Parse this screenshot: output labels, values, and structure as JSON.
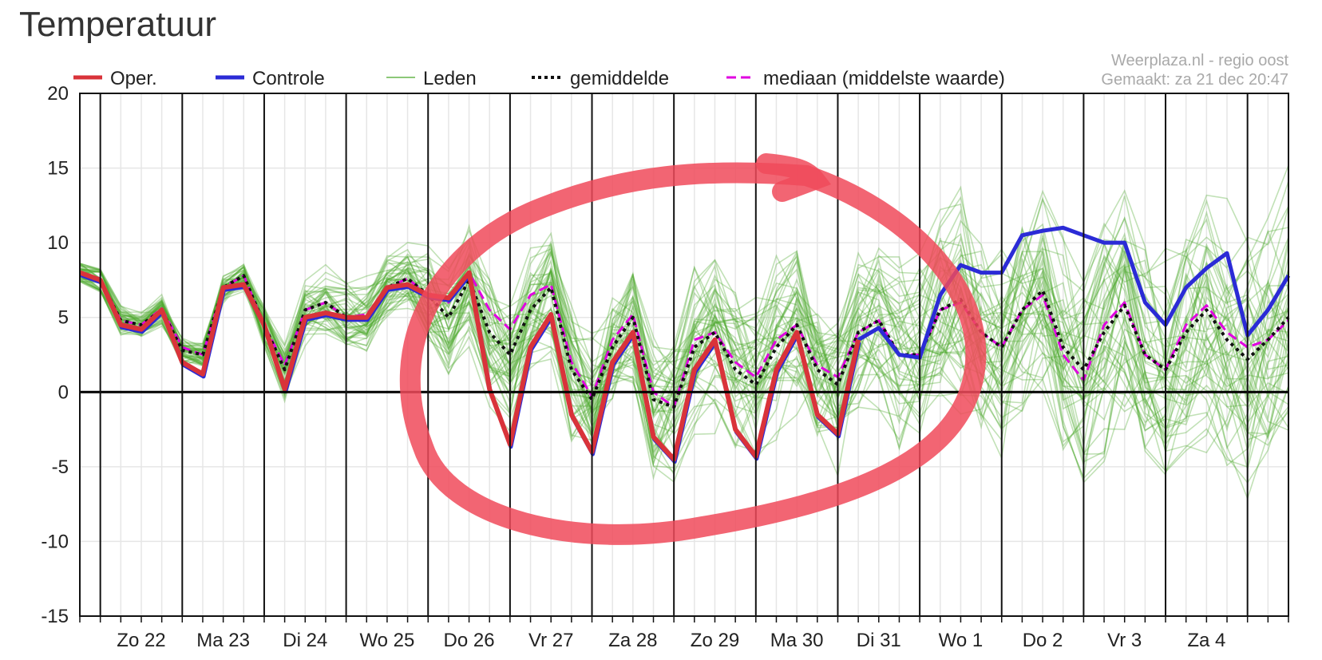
{
  "title": "Temperatuur",
  "source": {
    "line1": "Weerplaza.nl - regio oost",
    "line2": "Gemaakt: za 21 dec 20:47"
  },
  "colors": {
    "oper": "#d9333a",
    "controle": "#2b2bd6",
    "leden": "#4ea82e",
    "gemiddelde": "#111111",
    "mediaan": "#e000e0",
    "annotation": "#f04a5a"
  },
  "chart_data": {
    "type": "line",
    "title": "Temperatuur",
    "xlabel": "",
    "ylabel": "",
    "ylim": [
      -15,
      20
    ],
    "yticks": [
      -15,
      -10,
      -5,
      0,
      5,
      10,
      15,
      20
    ],
    "xlim": [
      21.75,
      36.5
    ],
    "grid": true,
    "legend_position": "top",
    "day_ticks": [
      {
        "label": "Zo 22",
        "x": 22.5
      },
      {
        "label": "Ma 23",
        "x": 23.5
      },
      {
        "label": "Di 24",
        "x": 24.5
      },
      {
        "label": "Wo 25",
        "x": 25.5
      },
      {
        "label": "Do 26",
        "x": 26.5
      },
      {
        "label": "Vr 27",
        "x": 27.5
      },
      {
        "label": "Za 28",
        "x": 28.5
      },
      {
        "label": "Zo 29",
        "x": 29.5
      },
      {
        "label": "Ma 30",
        "x": 30.5
      },
      {
        "label": "Di 31",
        "x": 31.5
      },
      {
        "label": "Wo 1",
        "x": 32.5
      },
      {
        "label": "Do 2",
        "x": 33.5
      },
      {
        "label": "Vr 3",
        "x": 34.5
      },
      {
        "label": "Za 4",
        "x": 35.5
      }
    ],
    "series": [
      {
        "name": "Oper.",
        "style": "oper",
        "x": [
          21.75,
          22.0,
          22.25,
          22.5,
          22.75,
          23.0,
          23.25,
          23.5,
          23.75,
          24.0,
          24.25,
          24.5,
          24.75,
          25.0,
          25.25,
          25.5,
          25.75,
          26.0,
          26.25,
          26.5,
          26.75,
          27.0,
          27.25,
          27.5,
          27.75,
          28.0,
          28.25,
          28.5,
          28.75,
          29.0,
          29.25,
          29.5,
          29.75,
          30.0,
          30.25,
          30.5,
          30.75,
          31.0,
          31.25
        ],
        "values": [
          8,
          7.5,
          4.5,
          4.2,
          5.5,
          2.0,
          1.2,
          7.0,
          7.2,
          4.5,
          0.2,
          5.0,
          5.3,
          5.0,
          5.0,
          7.0,
          7.2,
          6.5,
          6.3,
          8.0,
          0.2,
          -3.5,
          3.0,
          5.2,
          -1.5,
          -4.0,
          2.0,
          4.0,
          -3.0,
          -4.5,
          1.5,
          3.5,
          -2.5,
          -4.3,
          1.5,
          4.0,
          -1.5,
          -2.8,
          3.5
        ]
      },
      {
        "name": "Controle",
        "style": "controle",
        "x": [
          31.25,
          31.5,
          31.75,
          32.0,
          32.25,
          32.5,
          32.75,
          33.0,
          33.25,
          33.5,
          33.75,
          34.0,
          34.25,
          34.5,
          34.75,
          35.0,
          35.25,
          35.5,
          35.75,
          36.0,
          36.25,
          36.5
        ],
        "values": [
          3.5,
          4.3,
          2.5,
          2.3,
          6.5,
          8.5,
          8.0,
          8.0,
          10.5,
          10.8,
          11.0,
          10.5,
          10.0,
          10.0,
          6.0,
          4.5,
          7.0,
          8.3,
          9.3,
          3.8,
          5.5,
          7.8
        ]
      },
      {
        "name": "gemiddelde",
        "style": "gemiddelde",
        "x": [
          21.75,
          22.0,
          22.25,
          22.5,
          22.75,
          23.0,
          23.25,
          23.5,
          23.75,
          24.0,
          24.25,
          24.5,
          24.75,
          25.0,
          25.25,
          25.5,
          25.75,
          26.0,
          26.25,
          26.5,
          26.75,
          27.0,
          27.25,
          27.5,
          27.75,
          28.0,
          28.25,
          28.5,
          28.75,
          29.0,
          29.25,
          29.5,
          29.75,
          30.0,
          30.25,
          30.5,
          30.75,
          31.0,
          31.25,
          31.5,
          31.75,
          32.0,
          32.25,
          32.5,
          32.75,
          33.0,
          33.25,
          33.5,
          33.75,
          34.0,
          34.25,
          34.5,
          34.75,
          35.0,
          35.25,
          35.5,
          35.75,
          36.0,
          36.25,
          36.5
        ],
        "values": [
          8,
          7.5,
          4.8,
          4.5,
          5.5,
          2.8,
          2.5,
          7.0,
          7.8,
          4.5,
          1.5,
          5.5,
          6.0,
          5.0,
          5.0,
          7.0,
          7.6,
          6.5,
          5.0,
          7.5,
          4.0,
          2.5,
          5.5,
          7.0,
          1.5,
          -0.5,
          3.0,
          5.0,
          -0.5,
          -1.0,
          3.0,
          4.0,
          1.5,
          0.5,
          3.0,
          4.5,
          1.5,
          0.5,
          4.0,
          4.8,
          2.5,
          2.5,
          5.5,
          6.2,
          4.0,
          3.0,
          5.5,
          6.8,
          3.0,
          1.5,
          4.0,
          5.8,
          2.5,
          1.5,
          4.0,
          5.5,
          3.5,
          2.2,
          3.5,
          5.0
        ]
      },
      {
        "name": "mediaan (middelste waarde)",
        "style": "mediaan",
        "x": [
          21.75,
          22.0,
          22.25,
          22.5,
          22.75,
          23.0,
          23.25,
          23.5,
          23.75,
          24.0,
          24.25,
          24.5,
          24.75,
          25.0,
          25.25,
          25.5,
          25.75,
          26.0,
          26.25,
          26.5,
          26.75,
          27.0,
          27.25,
          27.5,
          27.75,
          28.0,
          28.25,
          28.5,
          28.75,
          29.0,
          29.25,
          29.5,
          29.75,
          30.0,
          30.25,
          30.5,
          30.75,
          31.0,
          31.25,
          31.5,
          31.75,
          32.0,
          32.25,
          32.5,
          32.75,
          33.0,
          33.25,
          33.5,
          33.75,
          34.0,
          34.25,
          34.5,
          34.75,
          35.0,
          35.25,
          35.5,
          35.75,
          36.0,
          36.25,
          36.5
        ],
        "values": [
          8,
          7.6,
          4.8,
          4.5,
          5.6,
          3.0,
          2.5,
          7.0,
          7.8,
          4.5,
          1.8,
          5.5,
          6.0,
          5.0,
          5.2,
          7.0,
          7.6,
          6.5,
          6.0,
          8.0,
          5.5,
          4.2,
          6.5,
          7.2,
          2.0,
          -0.3,
          3.5,
          5.2,
          0.0,
          -1.0,
          3.5,
          4.0,
          2.0,
          1.0,
          3.5,
          4.5,
          1.8,
          1.0,
          4.0,
          4.8,
          2.5,
          2.5,
          5.5,
          6.0,
          4.0,
          3.0,
          5.5,
          6.5,
          2.5,
          0.8,
          4.5,
          6.0,
          2.5,
          1.5,
          4.5,
          5.8,
          4.0,
          3.0,
          3.5,
          4.8
        ]
      }
    ],
    "leden": {
      "name": "Leden",
      "members": 50,
      "note": "ensemble member lines spread around the mean"
    }
  }
}
